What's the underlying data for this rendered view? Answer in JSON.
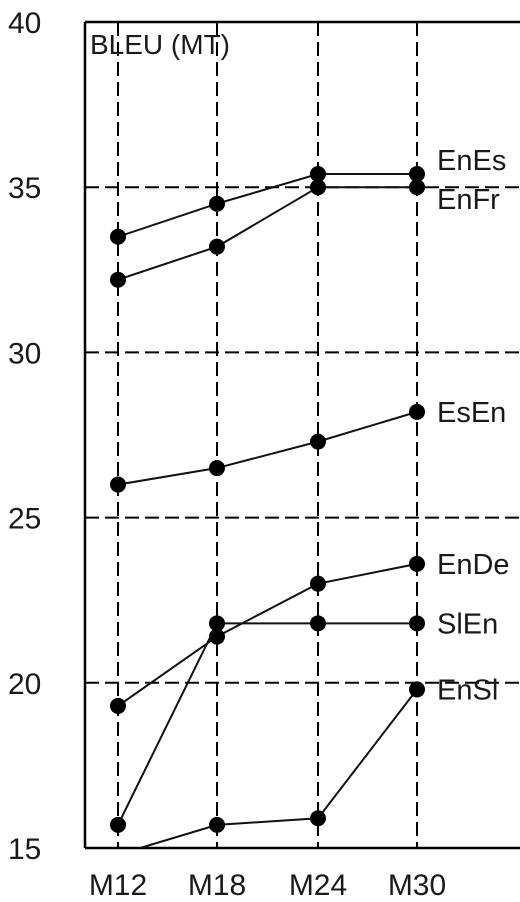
{
  "chart_data": {
    "type": "line",
    "ylabel": "BLEU (MT)",
    "categories": [
      "M12",
      "M18",
      "M24",
      "M30"
    ],
    "y_ticks": [
      "15",
      "20",
      "25",
      "30",
      "35",
      "40"
    ],
    "ylim": [
      15,
      40
    ],
    "grid": true,
    "series": [
      {
        "name": "EnEs",
        "values": [
          33.5,
          34.5,
          35.4,
          35.4
        ]
      },
      {
        "name": "EnFr",
        "values": [
          32.2,
          33.2,
          35.0,
          35.0
        ]
      },
      {
        "name": "EsEn",
        "values": [
          26.0,
          26.5,
          27.3,
          28.2
        ]
      },
      {
        "name": "EnDe",
        "values": [
          19.3,
          21.4,
          23.0,
          23.6
        ]
      },
      {
        "name": "SlEn",
        "values": [
          15.7,
          21.8,
          21.8,
          21.8
        ]
      },
      {
        "name": "EnSl",
        "values": [
          14.8,
          15.7,
          15.9,
          19.8
        ]
      }
    ]
  }
}
